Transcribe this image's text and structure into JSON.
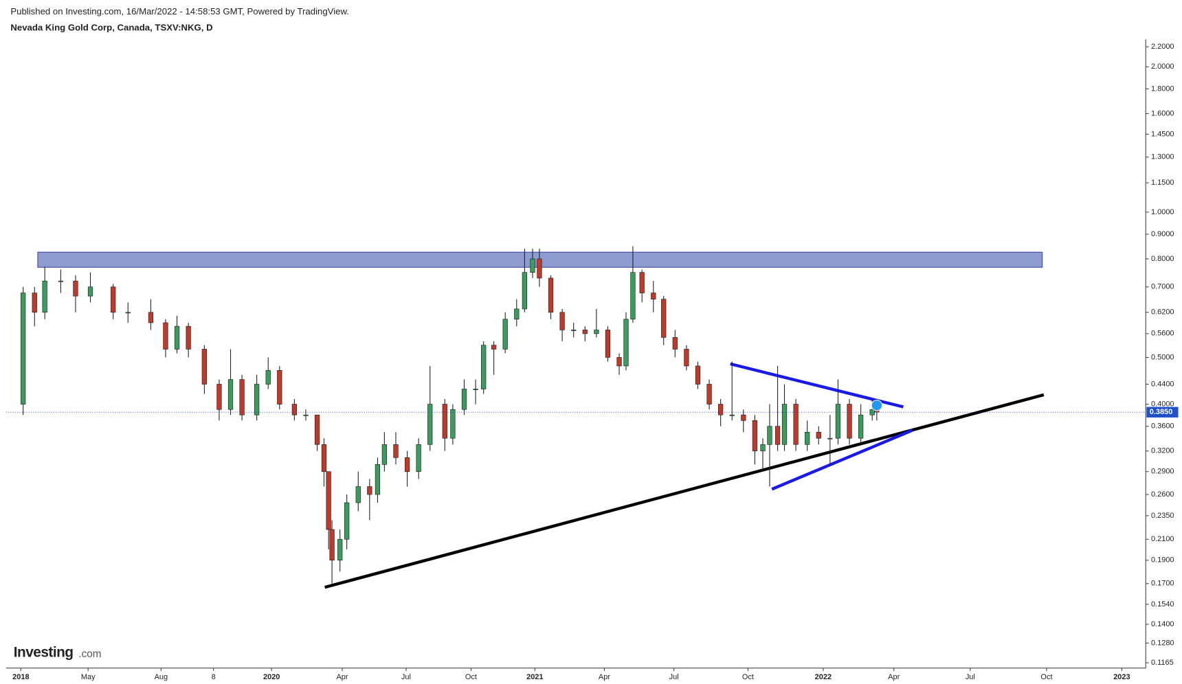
{
  "header": {
    "published": "Published on Investing.com, 16/Mar/2022 - 14:58:53 GMT, Powered by TradingView.",
    "logo_main": "Investing",
    "logo_suffix": ".com"
  },
  "chart_data": {
    "type": "candlestick",
    "title": "Nevada King Gold Corp, Canada, TSXV:NKG, D",
    "log_scale": true,
    "up_color": "#3a9d5d",
    "down_color": "#c0392b",
    "xlim": [
      0,
      1000
    ],
    "ylim": [
      0.1136,
      2.28
    ],
    "xticks": [
      {
        "value": 13,
        "label": "2018"
      },
      {
        "value": 72,
        "label": "May"
      },
      {
        "value": 136,
        "label": "Aug"
      },
      {
        "value": 182,
        "label": "8"
      },
      {
        "value": 233,
        "label": "2020"
      },
      {
        "value": 295,
        "label": "Apr"
      },
      {
        "value": 351,
        "label": "Jul"
      },
      {
        "value": 408,
        "label": "Oct"
      },
      {
        "value": 464,
        "label": "2021"
      },
      {
        "value": 525,
        "label": "Apr"
      },
      {
        "value": 586,
        "label": "Jul"
      },
      {
        "value": 651,
        "label": "Oct"
      },
      {
        "value": 717,
        "label": "2022"
      },
      {
        "value": 779,
        "label": "Apr"
      },
      {
        "value": 846,
        "label": "Jul"
      },
      {
        "value": 913,
        "label": "Oct"
      },
      {
        "value": 979,
        "label": "2023"
      }
    ],
    "yticks": [
      {
        "value": 2.2,
        "label": "2.2000"
      },
      {
        "value": 2.0,
        "label": "2.0000"
      },
      {
        "value": 1.8,
        "label": "1.8000"
      },
      {
        "value": 1.6,
        "label": "1.6000"
      },
      {
        "value": 1.45,
        "label": "1.4500"
      },
      {
        "value": 1.3,
        "label": "1.3000"
      },
      {
        "value": 1.15,
        "label": "1.1500"
      },
      {
        "value": 1.0,
        "label": "1.0000"
      },
      {
        "value": 0.9,
        "label": "0.9000"
      },
      {
        "value": 0.8,
        "label": "0.8000"
      },
      {
        "value": 0.7,
        "label": "0.7000"
      },
      {
        "value": 0.62,
        "label": "0.6200"
      },
      {
        "value": 0.56,
        "label": "0.5600"
      },
      {
        "value": 0.5,
        "label": "0.5000"
      },
      {
        "value": 0.44,
        "label": "0.4400"
      },
      {
        "value": 0.4,
        "label": "0.4000"
      },
      {
        "value": 0.36,
        "label": "0.3600"
      },
      {
        "value": 0.32,
        "label": "0.3200"
      },
      {
        "value": 0.29,
        "label": "0.2900"
      },
      {
        "value": 0.26,
        "label": "0.2600"
      },
      {
        "value": 0.235,
        "label": "0.2350"
      },
      {
        "value": 0.21,
        "label": "0.2100"
      },
      {
        "value": 0.19,
        "label": "0.1900"
      },
      {
        "value": 0.17,
        "label": "0.1700"
      },
      {
        "value": 0.154,
        "label": "0.1540"
      },
      {
        "value": 0.14,
        "label": "0.1400"
      },
      {
        "value": 0.128,
        "label": "0.1280"
      },
      {
        "value": 0.1165,
        "label": "0.1165"
      }
    ],
    "last_price": {
      "value": 0.385,
      "label": "0.3850"
    },
    "x": [
      15,
      25,
      34,
      48,
      61,
      74,
      94,
      107,
      127,
      140,
      150,
      160,
      174,
      187,
      197,
      207,
      220,
      230,
      240,
      253,
      263,
      273,
      279,
      283,
      286,
      293,
      299,
      309,
      319,
      326,
      332,
      342,
      352,
      362,
      372,
      385,
      392,
      402,
      412,
      419,
      428,
      438,
      448,
      455,
      462,
      468,
      478,
      488,
      498,
      508,
      518,
      528,
      538,
      544,
      550,
      558,
      568,
      577,
      587,
      597,
      607,
      617,
      627,
      637,
      647,
      657,
      664,
      670,
      677,
      683,
      693,
      703,
      713,
      723,
      730,
      740,
      750,
      760,
      764
    ],
    "open": [
      0.4,
      0.68,
      0.62,
      0.72,
      0.72,
      0.67,
      0.7,
      0.62,
      0.62,
      0.59,
      0.52,
      0.58,
      0.52,
      0.44,
      0.39,
      0.45,
      0.38,
      0.44,
      0.47,
      0.4,
      0.38,
      0.38,
      0.33,
      0.29,
      0.22,
      0.19,
      0.21,
      0.25,
      0.27,
      0.26,
      0.3,
      0.33,
      0.31,
      0.29,
      0.33,
      0.4,
      0.34,
      0.39,
      0.43,
      0.43,
      0.53,
      0.52,
      0.6,
      0.63,
      0.75,
      0.8,
      0.73,
      0.62,
      0.57,
      0.57,
      0.56,
      0.57,
      0.5,
      0.48,
      0.6,
      0.75,
      0.68,
      0.66,
      0.55,
      0.52,
      0.48,
      0.44,
      0.4,
      0.38,
      0.38,
      0.37,
      0.32,
      0.33,
      0.36,
      0.33,
      0.4,
      0.33,
      0.35,
      0.34,
      0.34,
      0.4,
      0.34,
      0.38,
      0.39
    ],
    "high": [
      0.7,
      0.7,
      0.77,
      0.76,
      0.74,
      0.75,
      0.71,
      0.65,
      0.66,
      0.6,
      0.61,
      0.59,
      0.53,
      0.45,
      0.52,
      0.46,
      0.46,
      0.5,
      0.48,
      0.41,
      0.39,
      0.38,
      0.34,
      0.29,
      0.23,
      0.22,
      0.26,
      0.29,
      0.28,
      0.31,
      0.35,
      0.35,
      0.32,
      0.34,
      0.48,
      0.41,
      0.4,
      0.45,
      0.45,
      0.54,
      0.54,
      0.62,
      0.66,
      0.84,
      0.84,
      0.84,
      0.74,
      0.63,
      0.59,
      0.58,
      0.63,
      0.58,
      0.51,
      0.62,
      0.85,
      0.76,
      0.72,
      0.67,
      0.57,
      0.53,
      0.49,
      0.45,
      0.41,
      0.49,
      0.39,
      0.38,
      0.34,
      0.4,
      0.48,
      0.44,
      0.41,
      0.37,
      0.36,
      0.38,
      0.45,
      0.41,
      0.4,
      0.41,
      0.4
    ],
    "low": [
      0.38,
      0.58,
      0.6,
      0.68,
      0.62,
      0.65,
      0.6,
      0.59,
      0.57,
      0.5,
      0.51,
      0.5,
      0.42,
      0.37,
      0.38,
      0.37,
      0.37,
      0.43,
      0.39,
      0.37,
      0.37,
      0.32,
      0.27,
      0.2,
      0.17,
      0.18,
      0.2,
      0.24,
      0.23,
      0.25,
      0.29,
      0.3,
      0.27,
      0.28,
      0.32,
      0.32,
      0.33,
      0.38,
      0.4,
      0.42,
      0.46,
      0.51,
      0.58,
      0.62,
      0.73,
      0.7,
      0.6,
      0.54,
      0.55,
      0.54,
      0.55,
      0.49,
      0.46,
      0.47,
      0.59,
      0.65,
      0.62,
      0.53,
      0.5,
      0.47,
      0.43,
      0.39,
      0.36,
      0.37,
      0.35,
      0.3,
      0.29,
      0.27,
      0.32,
      0.32,
      0.32,
      0.32,
      0.33,
      0.3,
      0.33,
      0.33,
      0.33,
      0.37,
      0.37
    ],
    "close": [
      0.68,
      0.62,
      0.72,
      0.72,
      0.67,
      0.7,
      0.62,
      0.62,
      0.59,
      0.52,
      0.58,
      0.52,
      0.44,
      0.39,
      0.45,
      0.38,
      0.44,
      0.47,
      0.4,
      0.38,
      0.38,
      0.33,
      0.29,
      0.22,
      0.19,
      0.21,
      0.25,
      0.27,
      0.26,
      0.3,
      0.33,
      0.31,
      0.29,
      0.33,
      0.4,
      0.34,
      0.39,
      0.43,
      0.43,
      0.53,
      0.52,
      0.6,
      0.63,
      0.75,
      0.8,
      0.73,
      0.62,
      0.57,
      0.57,
      0.56,
      0.57,
      0.5,
      0.48,
      0.6,
      0.75,
      0.68,
      0.66,
      0.55,
      0.52,
      0.48,
      0.44,
      0.4,
      0.38,
      0.38,
      0.37,
      0.32,
      0.33,
      0.36,
      0.33,
      0.4,
      0.33,
      0.35,
      0.34,
      0.34,
      0.4,
      0.34,
      0.38,
      0.39,
      0.385
    ]
  }
}
